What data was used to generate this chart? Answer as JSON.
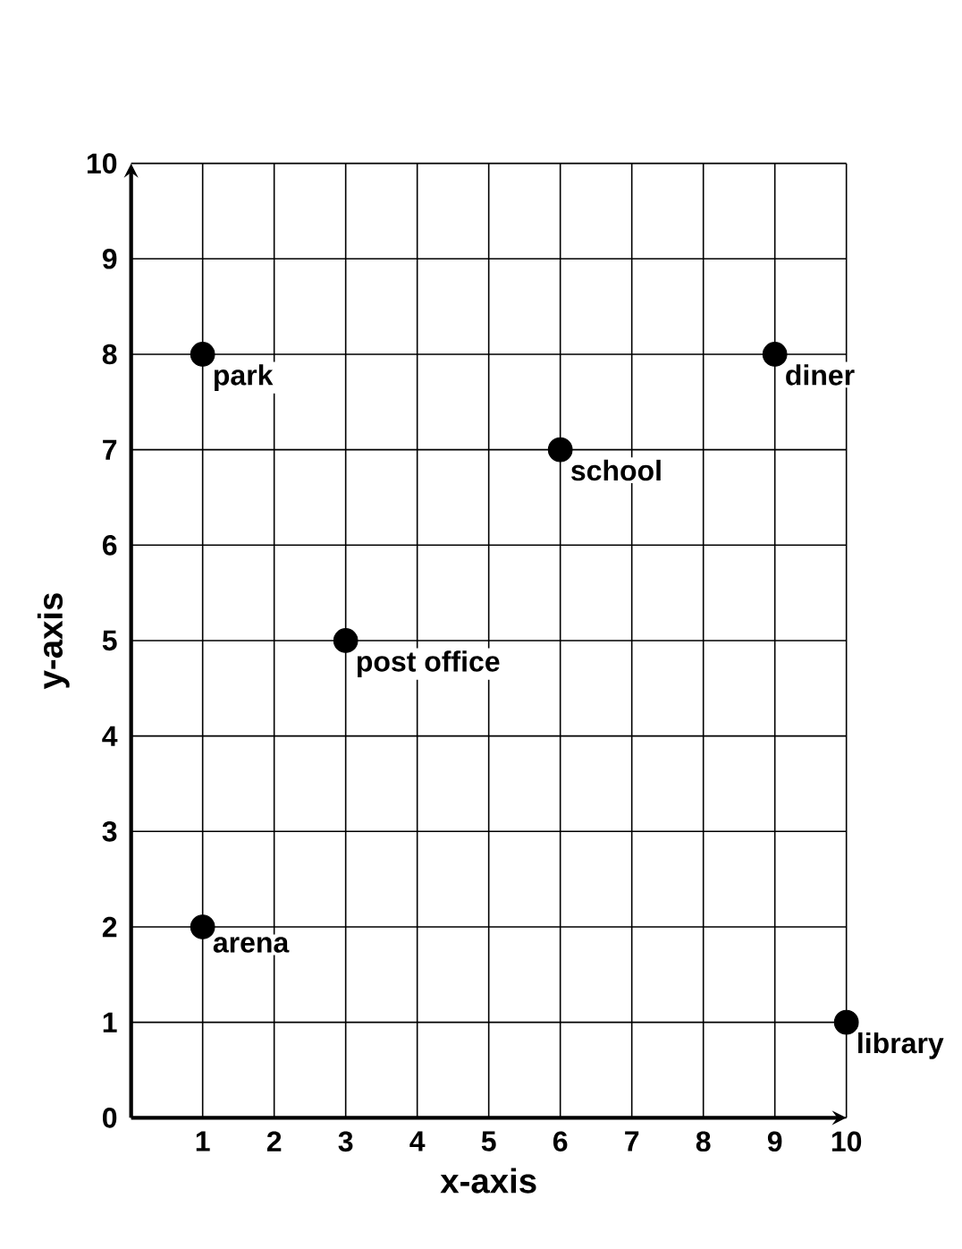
{
  "chart_data": {
    "type": "scatter",
    "xlabel": "x-axis",
    "ylabel": "y-axis",
    "x": [
      1,
      1,
      3,
      6,
      9,
      10
    ],
    "values": [
      2,
      8,
      5,
      7,
      8,
      1
    ],
    "color": "#000000",
    "marker": "circle",
    "grid": true,
    "xlim": [
      0,
      10
    ],
    "ylim": [
      0,
      10
    ],
    "xticks": [
      1,
      2,
      3,
      4,
      5,
      6,
      7,
      8,
      9,
      10
    ],
    "yticks": [
      0,
      1,
      2,
      3,
      4,
      5,
      6,
      7,
      8,
      9,
      10
    ],
    "annotations": [
      {
        "text": "arena",
        "x": 1,
        "y": 2
      },
      {
        "text": "park",
        "x": 1,
        "y": 8
      },
      {
        "text": "post office",
        "x": 3,
        "y": 5
      },
      {
        "text": "school",
        "x": 6,
        "y": 7
      },
      {
        "text": "diner",
        "x": 9,
        "y": 8
      },
      {
        "text": "library",
        "x": 10,
        "y": 1
      }
    ]
  }
}
